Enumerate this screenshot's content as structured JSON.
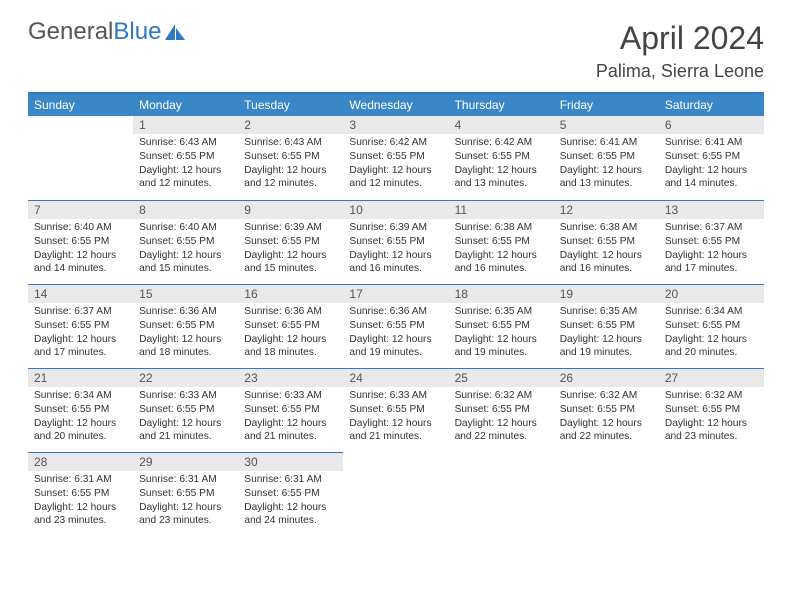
{
  "brand": {
    "part1": "General",
    "part2": "Blue"
  },
  "title": "April 2024",
  "location": "Palima, Sierra Leone",
  "colors": {
    "header_bg": "#3a87c8",
    "header_text": "#ffffff",
    "rule": "#2f79c2",
    "daynum_bg": "#e9e9e9",
    "body_text": "#333333",
    "page_bg": "#ffffff"
  },
  "typography": {
    "title_fontsize": 32,
    "location_fontsize": 18,
    "dow_fontsize": 12,
    "body_fontsize": 10.2
  },
  "layout": {
    "columns": 7,
    "rows": 5,
    "col_width_pct": 14.28
  },
  "dow": [
    "Sunday",
    "Monday",
    "Tuesday",
    "Wednesday",
    "Thursday",
    "Friday",
    "Saturday"
  ],
  "weeks": [
    [
      null,
      {
        "n": "1",
        "sunrise": "6:43 AM",
        "sunset": "6:55 PM",
        "daylight": "12 hours and 12 minutes."
      },
      {
        "n": "2",
        "sunrise": "6:43 AM",
        "sunset": "6:55 PM",
        "daylight": "12 hours and 12 minutes."
      },
      {
        "n": "3",
        "sunrise": "6:42 AM",
        "sunset": "6:55 PM",
        "daylight": "12 hours and 12 minutes."
      },
      {
        "n": "4",
        "sunrise": "6:42 AM",
        "sunset": "6:55 PM",
        "daylight": "12 hours and 13 minutes."
      },
      {
        "n": "5",
        "sunrise": "6:41 AM",
        "sunset": "6:55 PM",
        "daylight": "12 hours and 13 minutes."
      },
      {
        "n": "6",
        "sunrise": "6:41 AM",
        "sunset": "6:55 PM",
        "daylight": "12 hours and 14 minutes."
      }
    ],
    [
      {
        "n": "7",
        "sunrise": "6:40 AM",
        "sunset": "6:55 PM",
        "daylight": "12 hours and 14 minutes."
      },
      {
        "n": "8",
        "sunrise": "6:40 AM",
        "sunset": "6:55 PM",
        "daylight": "12 hours and 15 minutes."
      },
      {
        "n": "9",
        "sunrise": "6:39 AM",
        "sunset": "6:55 PM",
        "daylight": "12 hours and 15 minutes."
      },
      {
        "n": "10",
        "sunrise": "6:39 AM",
        "sunset": "6:55 PM",
        "daylight": "12 hours and 16 minutes."
      },
      {
        "n": "11",
        "sunrise": "6:38 AM",
        "sunset": "6:55 PM",
        "daylight": "12 hours and 16 minutes."
      },
      {
        "n": "12",
        "sunrise": "6:38 AM",
        "sunset": "6:55 PM",
        "daylight": "12 hours and 16 minutes."
      },
      {
        "n": "13",
        "sunrise": "6:37 AM",
        "sunset": "6:55 PM",
        "daylight": "12 hours and 17 minutes."
      }
    ],
    [
      {
        "n": "14",
        "sunrise": "6:37 AM",
        "sunset": "6:55 PM",
        "daylight": "12 hours and 17 minutes."
      },
      {
        "n": "15",
        "sunrise": "6:36 AM",
        "sunset": "6:55 PM",
        "daylight": "12 hours and 18 minutes."
      },
      {
        "n": "16",
        "sunrise": "6:36 AM",
        "sunset": "6:55 PM",
        "daylight": "12 hours and 18 minutes."
      },
      {
        "n": "17",
        "sunrise": "6:36 AM",
        "sunset": "6:55 PM",
        "daylight": "12 hours and 19 minutes."
      },
      {
        "n": "18",
        "sunrise": "6:35 AM",
        "sunset": "6:55 PM",
        "daylight": "12 hours and 19 minutes."
      },
      {
        "n": "19",
        "sunrise": "6:35 AM",
        "sunset": "6:55 PM",
        "daylight": "12 hours and 19 minutes."
      },
      {
        "n": "20",
        "sunrise": "6:34 AM",
        "sunset": "6:55 PM",
        "daylight": "12 hours and 20 minutes."
      }
    ],
    [
      {
        "n": "21",
        "sunrise": "6:34 AM",
        "sunset": "6:55 PM",
        "daylight": "12 hours and 20 minutes."
      },
      {
        "n": "22",
        "sunrise": "6:33 AM",
        "sunset": "6:55 PM",
        "daylight": "12 hours and 21 minutes."
      },
      {
        "n": "23",
        "sunrise": "6:33 AM",
        "sunset": "6:55 PM",
        "daylight": "12 hours and 21 minutes."
      },
      {
        "n": "24",
        "sunrise": "6:33 AM",
        "sunset": "6:55 PM",
        "daylight": "12 hours and 21 minutes."
      },
      {
        "n": "25",
        "sunrise": "6:32 AM",
        "sunset": "6:55 PM",
        "daylight": "12 hours and 22 minutes."
      },
      {
        "n": "26",
        "sunrise": "6:32 AM",
        "sunset": "6:55 PM",
        "daylight": "12 hours and 22 minutes."
      },
      {
        "n": "27",
        "sunrise": "6:32 AM",
        "sunset": "6:55 PM",
        "daylight": "12 hours and 23 minutes."
      }
    ],
    [
      {
        "n": "28",
        "sunrise": "6:31 AM",
        "sunset": "6:55 PM",
        "daylight": "12 hours and 23 minutes."
      },
      {
        "n": "29",
        "sunrise": "6:31 AM",
        "sunset": "6:55 PM",
        "daylight": "12 hours and 23 minutes."
      },
      {
        "n": "30",
        "sunrise": "6:31 AM",
        "sunset": "6:55 PM",
        "daylight": "12 hours and 24 minutes."
      },
      null,
      null,
      null,
      null
    ]
  ],
  "labels": {
    "sunrise": "Sunrise:",
    "sunset": "Sunset:",
    "daylight": "Daylight:"
  }
}
